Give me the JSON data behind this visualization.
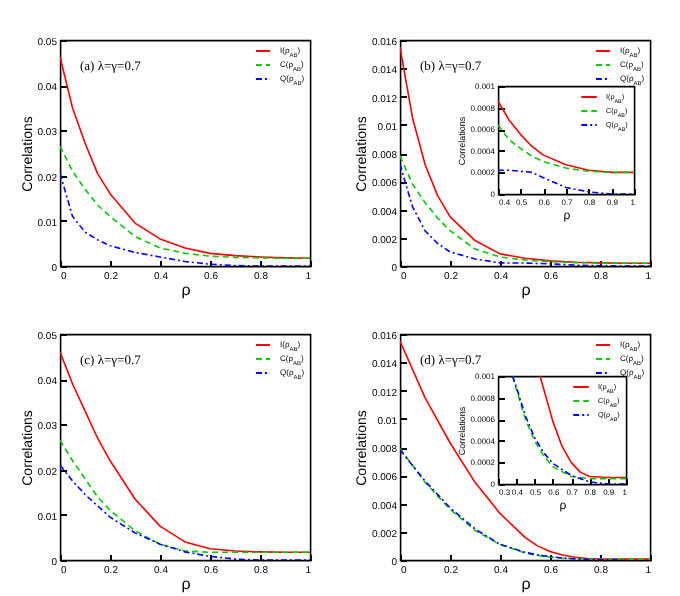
{
  "chart_data": [
    {
      "type": "line",
      "xlabel": "ρ",
      "ylabel": "Correlations",
      "annotations": [
        "(a) λ=γ=0.7"
      ],
      "xlim": [
        0,
        1
      ],
      "xticks": [
        0,
        0.2,
        0.4,
        0.6,
        0.8,
        1
      ],
      "ylim": [
        0,
        0.05
      ],
      "yticks": [
        0,
        0.01,
        0.02,
        0.03,
        0.04,
        0.05
      ],
      "legend": "top right",
      "grid": false,
      "x": [
        0,
        0.05,
        0.1,
        0.15,
        0.2,
        0.3,
        0.4,
        0.5,
        0.6,
        0.7,
        0.8,
        0.9,
        1
      ],
      "series": [
        {
          "name": "I(ρ$_{AB}$)",
          "color": "#ff0000",
          "line_style": "solid",
          "values": [
            0.0463,
            0.035,
            0.0272,
            0.0205,
            0.016,
            0.0095,
            0.006,
            0.004,
            0.0028,
            0.0023,
            0.002,
            0.0018,
            0.0017
          ]
        },
        {
          "name": "C(ρ$_{AB}$)",
          "color": "#00cc00",
          "line_style": "dashed",
          "values": [
            0.0265,
            0.021,
            0.017,
            0.0135,
            0.011,
            0.0065,
            0.004,
            0.0028,
            0.0022,
            0.0019,
            0.0018,
            0.0017,
            0.0017
          ]
        },
        {
          "name": "Q(ρ$_{AB}$)",
          "color": "#0000ff",
          "line_style": "dotted",
          "values": [
            0.0205,
            0.011,
            0.0075,
            0.0058,
            0.0045,
            0.003,
            0.002,
            0.001,
            0.0004,
            0.0001,
            0,
            0,
            0
          ]
        }
      ]
    },
    {
      "type": "line",
      "xlabel": "ρ",
      "ylabel": "Correlations",
      "annotations": [
        "(b) λ=γ=0.7"
      ],
      "xlim": [
        0,
        1
      ],
      "xticks": [
        0,
        0.2,
        0.4,
        0.6,
        0.8,
        1
      ],
      "ylim": [
        0,
        0.016
      ],
      "yticks": [
        0,
        0.002,
        0.004,
        0.006,
        0.008,
        0.01,
        0.012,
        0.014,
        0.016
      ],
      "legend": "top right",
      "grid": false,
      "x": [
        0,
        0.05,
        0.1,
        0.15,
        0.2,
        0.3,
        0.4,
        0.5,
        0.6,
        0.7,
        0.8,
        0.9,
        1
      ],
      "series": [
        {
          "name": "I(ρ$_{AB}$)",
          "color": "#ff0000",
          "line_style": "solid",
          "values": [
            0.0155,
            0.0105,
            0.0072,
            0.005,
            0.0035,
            0.0018,
            0.00086,
            0.00055,
            0.00036,
            0.00027,
            0.00022,
            0.0002,
            0.0002
          ]
        },
        {
          "name": "C(ρ$_{AB}$)",
          "color": "#00cc00",
          "line_style": "dashed",
          "values": [
            0.0078,
            0.0058,
            0.0045,
            0.0034,
            0.0025,
            0.0012,
            0.00064,
            0.00042,
            0.0003,
            0.00024,
            0.00021,
            0.0002,
            0.0002
          ]
        },
        {
          "name": "Q(ρ$_{AB}$)",
          "color": "#0000ff",
          "line_style": "dotted",
          "values": [
            0.0072,
            0.0042,
            0.0025,
            0.0016,
            0.001,
            0.0005,
            0.00022,
            0.00021,
            0.00015,
            6e-05,
            2e-05,
            0,
            0
          ]
        }
      ]
    },
    {
      "type": "line",
      "xlabel": "ρ",
      "ylabel": "Correlations",
      "xlim": [
        0.4,
        1
      ],
      "xticks": [
        0.4,
        0.5,
        0.6,
        0.7,
        0.8,
        0.9,
        1
      ],
      "ylim": [
        0,
        0.001
      ],
      "yticks": [
        0,
        0.0002,
        0.0004,
        0.0006,
        0.0008,
        0.001
      ],
      "legend": "top right",
      "grid": false,
      "x": [
        0.4,
        0.45,
        0.5,
        0.55,
        0.6,
        0.7,
        0.8,
        0.9,
        1
      ],
      "series": [
        {
          "name": "I(ρ$_{AB}$)",
          "color": "#ff0000",
          "line_style": "solid",
          "values": [
            0.00086,
            0.00068,
            0.00055,
            0.00044,
            0.00036,
            0.00027,
            0.00022,
            0.0002,
            0.0002
          ]
        },
        {
          "name": "C(ρ$_{AB}$)",
          "color": "#00cc00",
          "line_style": "dashed",
          "values": [
            0.00064,
            0.0005,
            0.00042,
            0.00035,
            0.0003,
            0.00024,
            0.00021,
            0.0002,
            0.0002
          ]
        },
        {
          "name": "Q(ρ$_{AB}$)",
          "color": "#0000ff",
          "line_style": "dotted",
          "values": [
            0.00022,
            0.00022,
            0.00021,
            0.0002,
            0.00015,
            6e-05,
            2e-05,
            0,
            0
          ]
        }
      ]
    },
    {
      "type": "line",
      "xlabel": "ρ",
      "ylabel": "Correlations",
      "annotations": [
        "(c) λ=γ=0.7"
      ],
      "xlim": [
        0,
        1
      ],
      "xticks": [
        0,
        0.2,
        0.4,
        0.6,
        0.8,
        1
      ],
      "ylim": [
        0,
        0.05
      ],
      "yticks": [
        0,
        0.01,
        0.02,
        0.03,
        0.04,
        0.05
      ],
      "legend": "top right",
      "grid": false,
      "x": [
        0,
        0.05,
        0.1,
        0.15,
        0.2,
        0.3,
        0.4,
        0.5,
        0.6,
        0.7,
        0.8,
        0.9,
        1
      ],
      "series": [
        {
          "name": "I(ρ$_{AB}$)",
          "color": "#ff0000",
          "line_style": "solid",
          "values": [
            0.046,
            0.039,
            0.033,
            0.027,
            0.022,
            0.0135,
            0.0075,
            0.004,
            0.0025,
            0.002,
            0.0018,
            0.0017,
            0.0017
          ]
        },
        {
          "name": "C(ρ$_{AB}$)",
          "color": "#00cc00",
          "line_style": "dashed",
          "values": [
            0.0265,
            0.022,
            0.018,
            0.014,
            0.011,
            0.0065,
            0.0035,
            0.002,
            0.0017,
            0.0017,
            0.0017,
            0.0017,
            0.0017
          ]
        },
        {
          "name": "Q(ρ$_{AB}$)",
          "color": "#0000ff",
          "line_style": "dotted",
          "values": [
            0.021,
            0.0175,
            0.0145,
            0.012,
            0.0095,
            0.006,
            0.0035,
            0.0018,
            0.0008,
            0.0002,
            0,
            0,
            0
          ]
        }
      ]
    },
    {
      "type": "line",
      "xlabel": "ρ",
      "ylabel": "Correlations",
      "annotations": [
        "(d) λ=γ=0.7"
      ],
      "xlim": [
        0,
        1
      ],
      "xticks": [
        0,
        0.2,
        0.4,
        0.6,
        0.8,
        1
      ],
      "ylim": [
        0,
        0.016
      ],
      "yticks": [
        0,
        0.002,
        0.004,
        0.006,
        0.008,
        0.01,
        0.012,
        0.014,
        0.016
      ],
      "legend": "top right",
      "grid": false,
      "x": [
        0,
        0.1,
        0.2,
        0.3,
        0.4,
        0.5,
        0.55,
        0.6,
        0.65,
        0.7,
        0.75,
        0.8,
        0.9,
        1
      ],
      "series": [
        {
          "name": "I(ρ$_{AB}$)",
          "color": "#ff0000",
          "line_style": "solid",
          "values": [
            0.0155,
            0.0115,
            0.0083,
            0.0055,
            0.0033,
            0.0016,
            0.001,
            0.0006,
            0.00035,
            0.0002,
            0.0001,
            7e-05,
            6e-05,
            6e-05
          ]
        },
        {
          "name": "C(ρ$_{AB}$)",
          "color": "#00cc00",
          "line_style": "dashed",
          "values": [
            0.0079,
            0.0055,
            0.0036,
            0.0021,
            0.0011,
            0.0005,
            0.00032,
            0.0002,
            0.00014,
            0.0001,
            7e-05,
            5e-05,
            5e-05,
            5e-05
          ]
        },
        {
          "name": "Q(ρ$_{AB}$)",
          "color": "#0000ff",
          "line_style": "dotted",
          "values": [
            0.0078,
            0.0056,
            0.0037,
            0.0022,
            0.0011,
            0.00055,
            0.00036,
            0.00023,
            0.00014,
            8e-05,
            4e-05,
            2e-05,
            0,
            null
          ]
        }
      ]
    },
    {
      "type": "line",
      "xlabel": "ρ",
      "ylabel": "Correlations",
      "xlim": [
        0.3,
        1
      ],
      "xticks": [
        0.3,
        0.4,
        0.5,
        0.6,
        0.7,
        0.8,
        0.9,
        1
      ],
      "ylim": [
        0,
        0.001
      ],
      "yticks": [
        0,
        0.0002,
        0.0004,
        0.0006,
        0.0008,
        0.001
      ],
      "legend": "top right",
      "grid": false,
      "series": [
        {
          "name": "I(ρ$_{AB}$)",
          "color": "#ff0000",
          "line_style": "solid",
          "x": [
            0.53,
            0.6,
            0.65,
            0.7,
            0.75,
            0.8,
            0.9,
            1
          ],
          "values": [
            0.001,
            0.00058,
            0.00035,
            0.0002,
            0.00011,
            7e-05,
            6e-05,
            6e-05
          ]
        },
        {
          "name": "C(ρ$_{AB}$)",
          "color": "#00cc00",
          "line_style": "dashed",
          "x": [
            0.38,
            0.4,
            0.45,
            0.5,
            0.55,
            0.6,
            0.7,
            0.8,
            0.9,
            1
          ],
          "values": [
            0.001,
            0.00088,
            0.0006,
            0.0004,
            0.00026,
            0.00016,
            7e-05,
            5e-05,
            5e-05,
            5e-05
          ]
        },
        {
          "name": "Q(ρ$_{AB}$)",
          "color": "#0000ff",
          "line_style": "dotted",
          "x": [
            0.38,
            0.4,
            0.45,
            0.5,
            0.55,
            0.6,
            0.7,
            0.8,
            0.9,
            1
          ],
          "values": [
            0.001,
            0.0009,
            0.00063,
            0.00043,
            0.00029,
            0.00019,
            8e-05,
            2e-05,
            0,
            0
          ]
        }
      ]
    }
  ]
}
